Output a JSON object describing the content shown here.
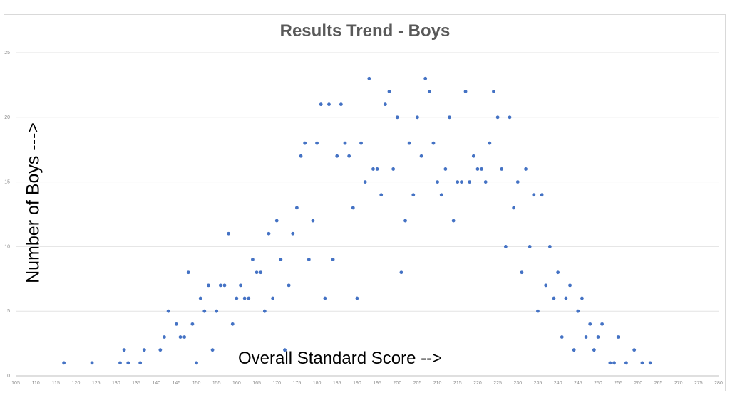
{
  "chart_data": {
    "type": "scatter",
    "title": "Results Trend - Boys",
    "xlabel": "Overall Standard Score -->",
    "ylabel": "Number of Boys --->",
    "xlim": [
      105,
      280
    ],
    "ylim": [
      0,
      25
    ],
    "x_ticks": [
      105,
      110,
      115,
      120,
      125,
      130,
      135,
      140,
      145,
      150,
      155,
      160,
      165,
      170,
      175,
      180,
      185,
      190,
      195,
      200,
      205,
      210,
      215,
      220,
      225,
      230,
      235,
      240,
      245,
      250,
      255,
      260,
      265,
      270,
      275,
      280
    ],
    "y_ticks": [
      0,
      5,
      10,
      15,
      20,
      25
    ],
    "grid": "horizontal",
    "marker_color": "#4472c4",
    "series": [
      {
        "points": [
          [
            117,
            1
          ],
          [
            124,
            1
          ],
          [
            131,
            1
          ],
          [
            132,
            2
          ],
          [
            133,
            1
          ],
          [
            136,
            1
          ],
          [
            137,
            2
          ],
          [
            141,
            2
          ],
          [
            142,
            3
          ],
          [
            143,
            5
          ],
          [
            145,
            4
          ],
          [
            146,
            3
          ],
          [
            147,
            3
          ],
          [
            148,
            8
          ],
          [
            149,
            4
          ],
          [
            150,
            1
          ],
          [
            151,
            6
          ],
          [
            152,
            5
          ],
          [
            153,
            7
          ],
          [
            154,
            2
          ],
          [
            155,
            5
          ],
          [
            156,
            7
          ],
          [
            157,
            7
          ],
          [
            158,
            11
          ],
          [
            159,
            4
          ],
          [
            160,
            6
          ],
          [
            161,
            7
          ],
          [
            162,
            6
          ],
          [
            163,
            6
          ],
          [
            164,
            9
          ],
          [
            165,
            8
          ],
          [
            166,
            8
          ],
          [
            167,
            5
          ],
          [
            168,
            11
          ],
          [
            169,
            6
          ],
          [
            170,
            12
          ],
          [
            171,
            9
          ],
          [
            172,
            2
          ],
          [
            173,
            7
          ],
          [
            174,
            11
          ],
          [
            175,
            13
          ],
          [
            176,
            17
          ],
          [
            177,
            18
          ],
          [
            178,
            9
          ],
          [
            179,
            12
          ],
          [
            180,
            18
          ],
          [
            181,
            21
          ],
          [
            182,
            6
          ],
          [
            183,
            21
          ],
          [
            184,
            9
          ],
          [
            185,
            17
          ],
          [
            186,
            21
          ],
          [
            187,
            18
          ],
          [
            188,
            17
          ],
          [
            189,
            13
          ],
          [
            190,
            6
          ],
          [
            191,
            18
          ],
          [
            192,
            15
          ],
          [
            193,
            23
          ],
          [
            194,
            16
          ],
          [
            195,
            16
          ],
          [
            196,
            14
          ],
          [
            197,
            21
          ],
          [
            198,
            22
          ],
          [
            199,
            16
          ],
          [
            200,
            20
          ],
          [
            201,
            8
          ],
          [
            202,
            12
          ],
          [
            203,
            18
          ],
          [
            204,
            14
          ],
          [
            205,
            20
          ],
          [
            206,
            17
          ],
          [
            207,
            23
          ],
          [
            208,
            22
          ],
          [
            209,
            18
          ],
          [
            210,
            15
          ],
          [
            211,
            14
          ],
          [
            212,
            16
          ],
          [
            213,
            20
          ],
          [
            214,
            12
          ],
          [
            215,
            15
          ],
          [
            216,
            15
          ],
          [
            217,
            22
          ],
          [
            218,
            15
          ],
          [
            219,
            17
          ],
          [
            220,
            16
          ],
          [
            221,
            16
          ],
          [
            222,
            15
          ],
          [
            223,
            18
          ],
          [
            224,
            22
          ],
          [
            225,
            20
          ],
          [
            226,
            16
          ],
          [
            227,
            10
          ],
          [
            228,
            20
          ],
          [
            229,
            13
          ],
          [
            230,
            15
          ],
          [
            231,
            8
          ],
          [
            232,
            16
          ],
          [
            233,
            10
          ],
          [
            234,
            14
          ],
          [
            235,
            5
          ],
          [
            236,
            14
          ],
          [
            237,
            7
          ],
          [
            238,
            10
          ],
          [
            239,
            6
          ],
          [
            240,
            8
          ],
          [
            241,
            3
          ],
          [
            242,
            6
          ],
          [
            243,
            7
          ],
          [
            244,
            2
          ],
          [
            245,
            5
          ],
          [
            246,
            6
          ],
          [
            247,
            3
          ],
          [
            248,
            4
          ],
          [
            249,
            2
          ],
          [
            250,
            3
          ],
          [
            251,
            4
          ],
          [
            253,
            1
          ],
          [
            254,
            1
          ],
          [
            255,
            3
          ],
          [
            257,
            1
          ],
          [
            259,
            2
          ],
          [
            261,
            1
          ],
          [
            263,
            1
          ]
        ]
      }
    ]
  }
}
